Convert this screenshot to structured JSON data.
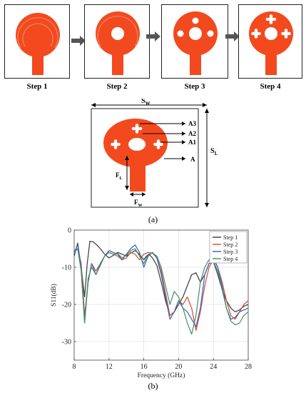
{
  "steps": [
    {
      "label": "Step 1"
    },
    {
      "label": "Step 2"
    },
    {
      "label": "Step 3"
    },
    {
      "label": "Step 4"
    }
  ],
  "dimension_labels": {
    "sw": "S",
    "sw_sub": "W",
    "sl": "S",
    "sl_sub": "L",
    "fl": "F",
    "fl_sub": "L",
    "fw": "F",
    "fw_sub": "W",
    "a3": "A3",
    "a2": "A2",
    "a1": "A1",
    "a": "A"
  },
  "captions": {
    "a": "(a)",
    "b": "(b)"
  },
  "colors": {
    "patch": "#f24a1e",
    "patch_dark": "#c23a14",
    "arrow": "#555555"
  },
  "chart_data": {
    "type": "line",
    "xlabel": "Frequency (GHz)",
    "ylabel": "S11(dB)",
    "xlim": [
      8,
      28
    ],
    "ylim": [
      -35,
      0
    ],
    "xticks": [
      8,
      12,
      16,
      20,
      24,
      28
    ],
    "yticks": [
      0,
      -10,
      -20,
      -30
    ],
    "grid": true,
    "legend_position": "top-right",
    "series": [
      {
        "name": "Step 1",
        "color": "#3a3a3a",
        "x": [
          8,
          8.4,
          8.8,
          9.2,
          9.5,
          9.8,
          10.2,
          10.6,
          11,
          11.5,
          12,
          12.5,
          13,
          13.5,
          14,
          14.5,
          15,
          15.5,
          16,
          16.3,
          16.6,
          17,
          17.5,
          18,
          18.5,
          19,
          19.5,
          20,
          20.5,
          21,
          21.5,
          22,
          22.5,
          23,
          23.5,
          24,
          24.5,
          25,
          25.5,
          26,
          26.5,
          27,
          27.5,
          28
        ],
        "y": [
          -7,
          -3.5,
          -10,
          -18,
          -9,
          -3,
          -3.2,
          -4,
          -5,
          -6.5,
          -7.5,
          -6.8,
          -6,
          -6.5,
          -7,
          -6.2,
          -5.5,
          -6.5,
          -8,
          -7,
          -6.5,
          -7.5,
          -9.5,
          -14,
          -19,
          -23,
          -22,
          -20,
          -18,
          -15,
          -12,
          -11.5,
          -14,
          -12,
          -9,
          -8.5,
          -12,
          -16,
          -19,
          -21,
          -22,
          -21.5,
          -20.5,
          -20
        ]
      },
      {
        "name": "Step 2",
        "color": "#d9482b",
        "x": [
          8,
          8.4,
          8.8,
          9.2,
          9.6,
          10,
          10.5,
          11,
          11.5,
          12,
          12.5,
          13,
          13.5,
          14,
          14.5,
          15,
          15.5,
          16,
          16.5,
          17,
          17.5,
          18,
          18.5,
          19,
          19.5,
          20,
          20.5,
          21,
          21.5,
          22,
          22.5,
          23,
          23.5,
          24,
          24.5,
          25,
          25.5,
          26,
          26.5,
          27,
          27.5,
          28
        ],
        "y": [
          -6,
          -5,
          -9,
          -23,
          -14,
          -9,
          -11,
          -9,
          -7,
          -6,
          -6.5,
          -7,
          -8,
          -7.5,
          -6,
          -6.5,
          -8,
          -6.5,
          -6,
          -6.2,
          -7.5,
          -11,
          -17,
          -23,
          -22,
          -19,
          -20,
          -18,
          -21,
          -27,
          -22,
          -15,
          -10,
          -8,
          -10,
          -14,
          -19,
          -23,
          -24,
          -22,
          -20,
          -19
        ]
      },
      {
        "name": "Step 3",
        "color": "#3b5fc0",
        "x": [
          8,
          8.4,
          8.8,
          9.2,
          9.6,
          10,
          10.5,
          11,
          11.5,
          12,
          12.5,
          13,
          13.5,
          14,
          14.5,
          15,
          15.5,
          16,
          16.5,
          17,
          17.5,
          18,
          18.5,
          19,
          19.5,
          20,
          20.5,
          21,
          21.5,
          22,
          22.5,
          23,
          23.5,
          24,
          24.5,
          25,
          25.5,
          26,
          26.5,
          27,
          27.5,
          28
        ],
        "y": [
          -6,
          -4,
          -10,
          -25,
          -14,
          -9,
          -12,
          -9.5,
          -7,
          -5.5,
          -6,
          -6.5,
          -8,
          -6.5,
          -5,
          -4,
          -6,
          -10,
          -7,
          -6,
          -7.5,
          -12,
          -18,
          -24,
          -22,
          -19,
          -21,
          -22,
          -24,
          -26,
          -21,
          -12,
          -9,
          -7.5,
          -10,
          -15,
          -21,
          -24,
          -23.5,
          -22,
          -21.5,
          -21
        ]
      },
      {
        "name": "Step 4",
        "color": "#3e8f66",
        "x": [
          8,
          8.4,
          8.8,
          9.2,
          9.6,
          10,
          10.5,
          11,
          11.5,
          12,
          12.5,
          13,
          13.5,
          14,
          14.5,
          15,
          15.5,
          16,
          16.5,
          17,
          17.5,
          18,
          18.5,
          19,
          19.5,
          20,
          20.5,
          21,
          21.5,
          22,
          22.5,
          23,
          23.5,
          24,
          24.5,
          25,
          25.5,
          26,
          26.5,
          27,
          27.5,
          28
        ],
        "y": [
          -6,
          -5,
          -11,
          -25,
          -13,
          -10,
          -12,
          -9,
          -7,
          -6,
          -6.5,
          -6.3,
          -7.5,
          -6.8,
          -5.5,
          -5,
          -7,
          -9,
          -6.5,
          -6.2,
          -7,
          -10,
          -15,
          -20,
          -16.5,
          -18,
          -21,
          -25,
          -28,
          -23,
          -14,
          -10,
          -8,
          -8.5,
          -11,
          -16,
          -21,
          -24.5,
          -25.5,
          -25,
          -23,
          -22
        ]
      }
    ]
  }
}
